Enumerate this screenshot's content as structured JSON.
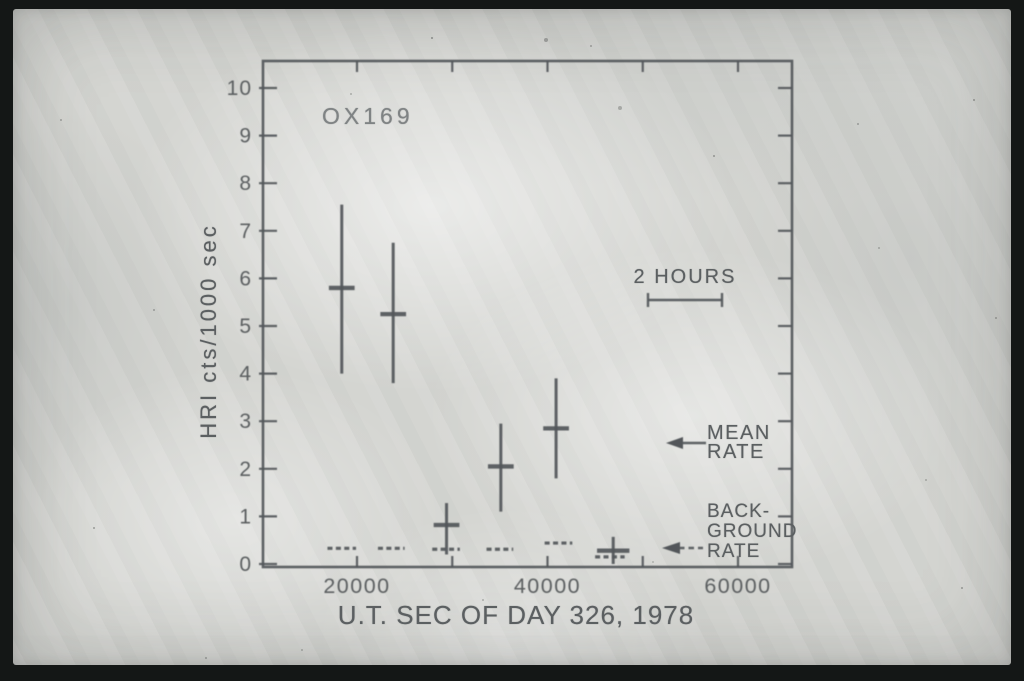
{
  "chart_data": {
    "type": "scatter",
    "title": "OX169",
    "xlabel": "U.T. SEC OF DAY 326, 1978",
    "ylabel": "HRI cts/1000 sec",
    "xlim": [
      10000,
      65700
    ],
    "ylim": [
      0,
      10.6
    ],
    "grid": false,
    "x_ticks": [
      20000,
      30000,
      40000,
      50000,
      60000
    ],
    "x_tick_labels": [
      "20000",
      "",
      "40000",
      "",
      "60000"
    ],
    "y_ticks": [
      0,
      1,
      2,
      3,
      4,
      5,
      6,
      7,
      8,
      9,
      10
    ],
    "y_tick_labels": [
      "0",
      "1",
      "2",
      "3",
      "4",
      "5",
      "6",
      "7",
      "8",
      "9",
      "10"
    ],
    "series": [
      {
        "name": "mean rate",
        "style": "cross-errorbar",
        "points": [
          {
            "x": 18400,
            "y": 5.8,
            "ylo": 4.0,
            "yhi": 7.55,
            "xerr": 1350
          },
          {
            "x": 23800,
            "y": 5.25,
            "ylo": 3.8,
            "yhi": 6.75,
            "xerr": 1350
          },
          {
            "x": 29400,
            "y": 0.82,
            "ylo": 0.2,
            "yhi": 1.28,
            "xerr": 1350
          },
          {
            "x": 35100,
            "y": 2.05,
            "ylo": 1.1,
            "yhi": 2.95,
            "xerr": 1350
          },
          {
            "x": 40900,
            "y": 2.85,
            "ylo": 1.8,
            "yhi": 3.9,
            "xerr": 1350
          },
          {
            "x": 46900,
            "y": 0.28,
            "ylo": 0.0,
            "yhi": 0.57,
            "xerr": 1700
          }
        ]
      },
      {
        "name": "background rate",
        "style": "dashed-segments",
        "segments": [
          {
            "x1": 16900,
            "x2": 19900,
            "y": 0.33
          },
          {
            "x1": 22200,
            "x2": 25000,
            "y": 0.33
          },
          {
            "x1": 27900,
            "x2": 30800,
            "y": 0.31
          },
          {
            "x1": 33600,
            "x2": 36400,
            "y": 0.31
          },
          {
            "x1": 39700,
            "x2": 42600,
            "y": 0.44
          },
          {
            "x1": 45000,
            "x2": 48100,
            "y": 0.15
          }
        ]
      }
    ],
    "scale_bar": {
      "label": "2 HOURS",
      "seconds": 7200
    },
    "annotations": [
      {
        "lines": [
          "MEAN",
          "RATE"
        ],
        "arrow": "solid-left"
      },
      {
        "lines": [
          "BACK-",
          "GROUND",
          "RATE"
        ],
        "arrow": "dashed-left"
      }
    ],
    "legend_position": "none"
  },
  "colors": {
    "ink": "#53575a",
    "photo_background": "#d4d5d1",
    "border": "#141716"
  }
}
